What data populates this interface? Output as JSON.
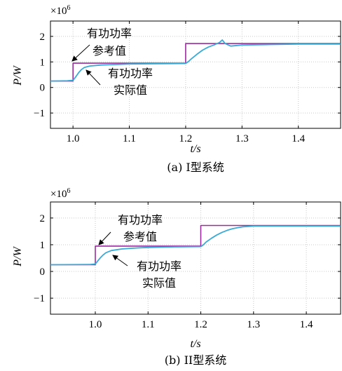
{
  "chart_data": [
    {
      "type": "line",
      "caption": "(a) I型系统",
      "xlabel": "t/s",
      "ylabel": "P/W",
      "exponent_label": "×10",
      "exponent_power": "6",
      "xlim": [
        0.96,
        1.475
      ],
      "ylim": [
        -1.6,
        2.6
      ],
      "xticks": [
        1.0,
        1.1,
        1.2,
        1.3,
        1.4
      ],
      "xtick_labels": [
        "1.0",
        "1.1",
        "1.2",
        "1.3",
        "1.4"
      ],
      "yticks": [
        -1,
        0,
        1,
        2
      ],
      "ytick_labels": [
        "−1",
        "0",
        "1",
        "2"
      ],
      "grid": true,
      "annotations": [
        {
          "line1": "有功功率",
          "line2": "参考值",
          "points_to": [
            1.0,
            0.95
          ]
        },
        {
          "line1": "有功功率",
          "line2": "实际值",
          "points_to": [
            1.022,
            0.66
          ]
        }
      ],
      "series": [
        {
          "color": "#9a2c9e",
          "x": [
            0.96,
            1.0,
            1.0,
            1.2,
            1.2,
            1.475
          ],
          "y": [
            0.25,
            0.25,
            0.95,
            0.95,
            1.72,
            1.72
          ]
        },
        {
          "color": "#3aaad6",
          "x": [
            0.96,
            0.99,
            1.0,
            1.005,
            1.01,
            1.015,
            1.02,
            1.03,
            1.05,
            1.08,
            1.1,
            1.15,
            1.2,
            1.205,
            1.21,
            1.22,
            1.23,
            1.24,
            1.25,
            1.26,
            1.265,
            1.27,
            1.28,
            1.3,
            1.35,
            1.4,
            1.475
          ],
          "y": [
            0.25,
            0.26,
            0.28,
            0.42,
            0.58,
            0.7,
            0.78,
            0.84,
            0.88,
            0.9,
            0.92,
            0.93,
            0.94,
            1.02,
            1.12,
            1.3,
            1.46,
            1.58,
            1.66,
            1.76,
            1.86,
            1.72,
            1.62,
            1.66,
            1.68,
            1.7,
            1.7
          ]
        }
      ]
    },
    {
      "type": "line",
      "caption": "(b) II型系统",
      "xlabel": "t/s",
      "ylabel": "P/W",
      "exponent_label": "×10",
      "exponent_power": "6",
      "xlim": [
        0.915,
        1.465
      ],
      "ylim": [
        -1.6,
        2.6
      ],
      "xticks": [
        1.0,
        1.1,
        1.2,
        1.3,
        1.4
      ],
      "xtick_labels": [
        "1.0",
        "1.1",
        "1.2",
        "1.3",
        "1.4"
      ],
      "yticks": [
        -1,
        0,
        1,
        2
      ],
      "ytick_labels": [
        "−1",
        "0",
        "1",
        "2"
      ],
      "grid": true,
      "annotations": [
        {
          "line1": "有功功率",
          "line2": "参考值",
          "points_to": [
            1.0,
            0.95
          ]
        },
        {
          "line1": "有功功率",
          "line2": "实际值",
          "points_to": [
            1.022,
            0.62
          ]
        }
      ],
      "series": [
        {
          "color": "#9a2c9e",
          "x": [
            0.915,
            1.0,
            1.0,
            1.2,
            1.2,
            1.465
          ],
          "y": [
            0.25,
            0.25,
            0.95,
            0.95,
            1.72,
            1.72
          ]
        },
        {
          "color": "#3aaad6",
          "x": [
            0.915,
            0.99,
            1.0,
            1.005,
            1.01,
            1.015,
            1.02,
            1.03,
            1.05,
            1.08,
            1.1,
            1.15,
            1.2,
            1.205,
            1.21,
            1.22,
            1.23,
            1.24,
            1.25,
            1.26,
            1.27,
            1.28,
            1.3,
            1.35,
            1.4,
            1.465
          ],
          "y": [
            0.25,
            0.26,
            0.28,
            0.4,
            0.52,
            0.62,
            0.7,
            0.78,
            0.84,
            0.88,
            0.9,
            0.92,
            0.93,
            1.0,
            1.1,
            1.24,
            1.36,
            1.46,
            1.54,
            1.6,
            1.64,
            1.67,
            1.7,
            1.7,
            1.7,
            1.7
          ]
        }
      ]
    }
  ]
}
